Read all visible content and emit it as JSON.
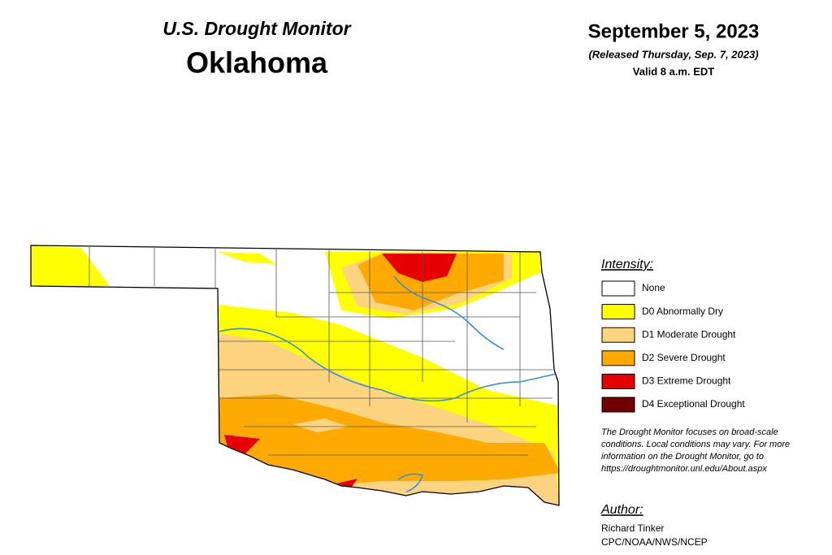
{
  "header": {
    "title": "U.S. Drought Monitor",
    "state": "Oklahoma"
  },
  "date": {
    "main": "September 5, 2023",
    "released": "(Released Thursday, Sep. 7, 2023)",
    "valid": "Valid 8 a.m. EDT"
  },
  "legend": {
    "heading": "Intensity:",
    "items": [
      {
        "label": "None",
        "color": "#ffffff"
      },
      {
        "label": "D0 Abnormally Dry",
        "color": "#ffff00"
      },
      {
        "label": "D1 Moderate Drought",
        "color": "#fcd37f"
      },
      {
        "label": "D2 Severe Drought",
        "color": "#ffaa00"
      },
      {
        "label": "D3 Extreme Drought",
        "color": "#e60000"
      },
      {
        "label": "D4 Exceptional Drought",
        "color": "#730000"
      }
    ]
  },
  "note": {
    "lines": [
      "The Drought Monitor focuses on broad-scale",
      "conditions. Local conditions may vary. For more",
      "information on the Drought Monitor, go to",
      "https://droughtmonitor.unl.edu/About.aspx"
    ]
  },
  "author": {
    "heading": "Author:",
    "lines": [
      "Richard Tinker",
      "CPC/NOAA/NWS/NCEP"
    ]
  }
}
